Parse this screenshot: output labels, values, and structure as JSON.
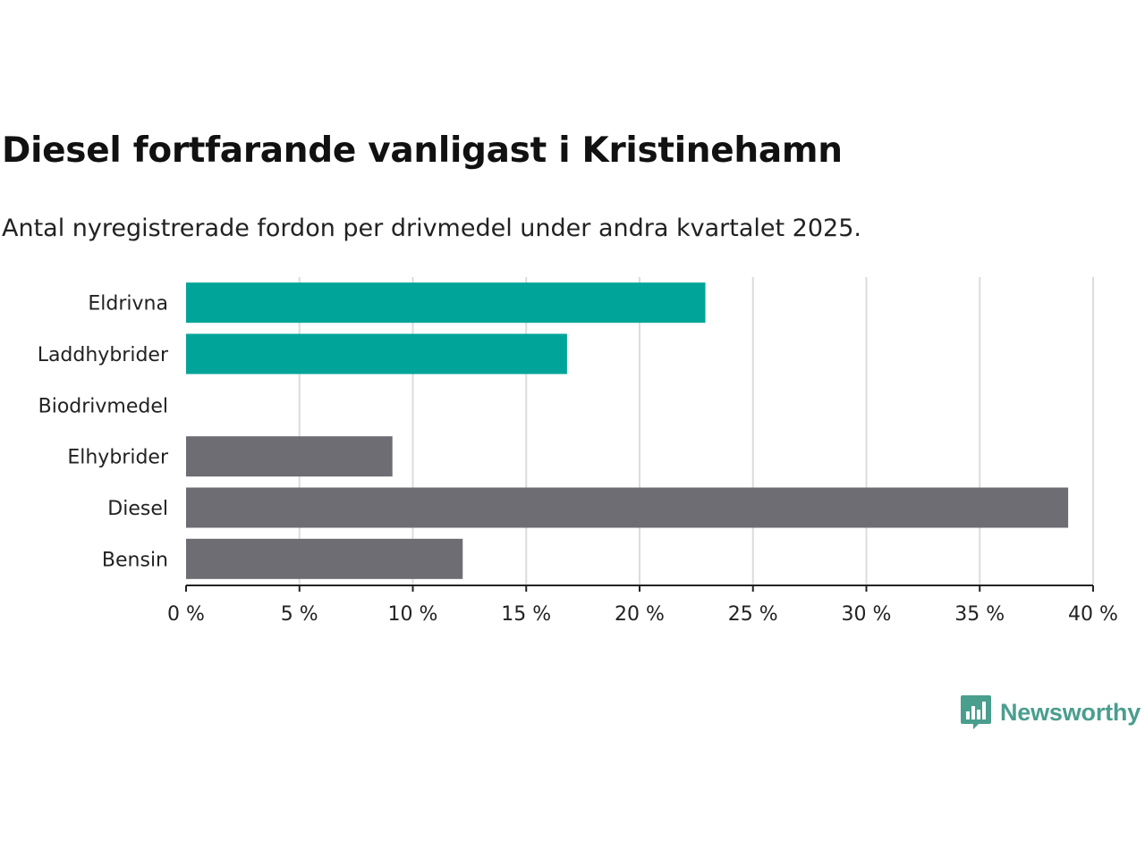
{
  "chart_data": {
    "type": "bar",
    "orientation": "horizontal",
    "title": "Diesel fortfarande vanligast i Kristinehamn",
    "subtitle": "Antal nyregistrerade fordon per drivmedel under andra kvartalet 2025.",
    "categories": [
      "Eldrivna",
      "Laddhybrider",
      "Biodrivmedel",
      "Elhybrider",
      "Diesel",
      "Bensin"
    ],
    "values": [
      22.9,
      16.8,
      0,
      9.1,
      38.9,
      12.2
    ],
    "bar_colors": [
      "#00a499",
      "#00a499",
      "#00a499",
      "#6e6d74",
      "#6e6d74",
      "#6e6d74"
    ],
    "xlim": [
      0,
      40
    ],
    "x_ticks": [
      0,
      5,
      10,
      15,
      20,
      25,
      30,
      35,
      40
    ],
    "x_tick_labels": [
      "0 %",
      "5 %",
      "10 %",
      "15 %",
      "20 %",
      "25 %",
      "30 %",
      "35 %",
      "40 %"
    ],
    "grid": "vertical",
    "xlabel": "",
    "ylabel": ""
  },
  "branding": {
    "logo_text": "Newsworthy",
    "logo_icon": "bar-chart-speech-bubble-icon",
    "color": "#4a9e8e"
  }
}
